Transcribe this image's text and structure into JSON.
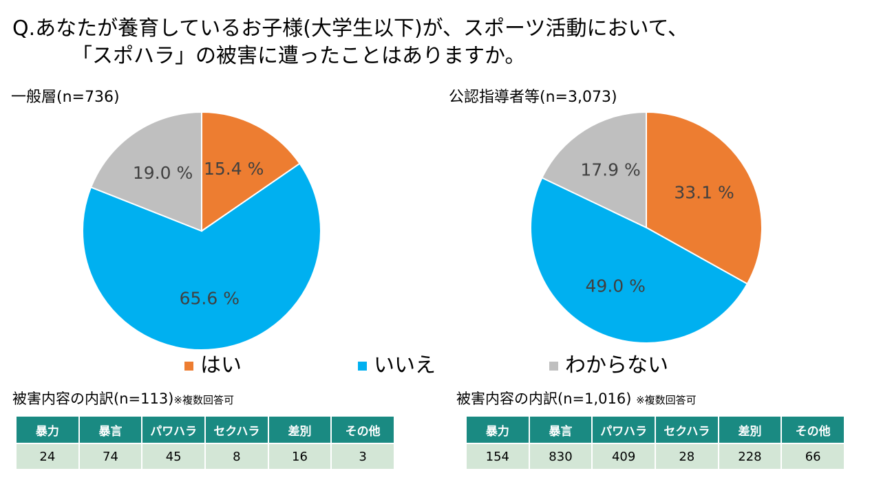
{
  "title": {
    "line1": "Q.あなたが養育しているお子様(大学生以下)が、スポーツ活動において、",
    "line2": "「スポハラ」の被害に遭ったことはありますか。"
  },
  "colors": {
    "yes": "#ED7D31",
    "no": "#00B0F0",
    "unknown": "#BFBFBF",
    "table_header": "#1A8A82",
    "table_cell": "#D3E6D6"
  },
  "legend": [
    {
      "label": "はい",
      "color": "#ED7D31"
    },
    {
      "label": "いいえ",
      "color": "#00B0F0"
    },
    {
      "label": "わからない",
      "color": "#BFBFBF"
    }
  ],
  "chart_data": [
    {
      "type": "pie",
      "title": "一般層(n=736)",
      "categories": [
        "はい",
        "いいえ",
        "わからない"
      ],
      "values": [
        15.4,
        65.6,
        19.0
      ],
      "labels": [
        "15.4 %",
        "65.6 %",
        "19.0 %"
      ],
      "colors": [
        "#ED7D31",
        "#00B0F0",
        "#BFBFBF"
      ]
    },
    {
      "type": "pie",
      "title": "公認指導者等(n=3,073)",
      "categories": [
        "はい",
        "いいえ",
        "わからない"
      ],
      "values": [
        33.1,
        49.0,
        17.9
      ],
      "labels": [
        "33.1 %",
        "49.0 %",
        "17.9 %"
      ],
      "colors": [
        "#ED7D31",
        "#00B0F0",
        "#BFBFBF"
      ]
    }
  ],
  "breakdown_left": {
    "label": "被害内容の内訳(n=113)",
    "note": "※複数回答可",
    "headers": [
      "暴力",
      "暴言",
      "パワハラ",
      "セクハラ",
      "差別",
      "その他"
    ],
    "values": [
      "24",
      "74",
      "45",
      "8",
      "16",
      "3"
    ]
  },
  "breakdown_right": {
    "label": "被害内容の内訳(n=1,016)",
    "note": "※複数回答可",
    "headers": [
      "暴力",
      "暴言",
      "パワハラ",
      "セクハラ",
      "差別",
      "その他"
    ],
    "values": [
      "154",
      "830",
      "409",
      "28",
      "228",
      "66"
    ]
  }
}
